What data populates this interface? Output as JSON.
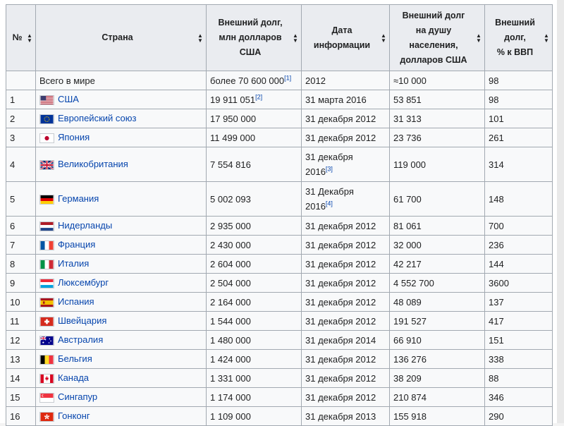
{
  "table": {
    "headers": [
      {
        "label": "№"
      },
      {
        "label": "Страна"
      },
      {
        "label": "Внешний долг,\nмлн долларов\nСША"
      },
      {
        "label": "Дата\nинформации"
      },
      {
        "label": "Внешний долг\nна душу\nнаселения,\nдолларов США"
      },
      {
        "label": "Внешний\nдолг,\n% к ВВП"
      }
    ],
    "world_row": {
      "country": "Всего в мире",
      "debt": "более 70 600 000",
      "debt_ref": "[1]",
      "date": "2012",
      "per_capita": "≈10 000",
      "pct_gdp": "98"
    },
    "rows": [
      {
        "num": "1",
        "country": "США",
        "flag": "usa-flag",
        "debt": "19 911 051",
        "debt_ref": "[2]",
        "date": "31 марта 2016",
        "date_ref": "",
        "per_capita": "53 851",
        "pct_gdp": "98"
      },
      {
        "num": "2",
        "country": "Европейский союз",
        "flag": "eu-flag",
        "debt": "17 950 000",
        "debt_ref": "",
        "date": "31 декабря 2012",
        "date_ref": "",
        "per_capita": "31 313",
        "pct_gdp": "101"
      },
      {
        "num": "3",
        "country": "Япония",
        "flag": "japan-flag",
        "debt": "11 499 000",
        "debt_ref": "",
        "date": "31 декабря 2012",
        "date_ref": "",
        "per_capita": "23 736",
        "pct_gdp": "261"
      },
      {
        "num": "4",
        "country": "Великобритания",
        "flag": "uk-flag",
        "debt": "7 554 816",
        "debt_ref": "",
        "date": "31 декабря 2016",
        "date_ref": "[3]",
        "per_capita": "119 000",
        "pct_gdp": "314"
      },
      {
        "num": "5",
        "country": "Германия",
        "flag": "germany-flag",
        "debt": "5 002 093",
        "debt_ref": "",
        "date": "31 Декабря 2016",
        "date_ref": "[4]",
        "per_capita": "61 700",
        "pct_gdp": "148"
      },
      {
        "num": "6",
        "country": "Нидерланды",
        "flag": "netherlands-flag",
        "debt": "2 935 000",
        "debt_ref": "",
        "date": "31 декабря 2012",
        "date_ref": "",
        "per_capita": "81 061",
        "pct_gdp": "700"
      },
      {
        "num": "7",
        "country": "Франция",
        "flag": "france-flag",
        "debt": "2 430 000",
        "debt_ref": "",
        "date": "31 декабря 2012",
        "date_ref": "",
        "per_capita": "32 000",
        "pct_gdp": "236"
      },
      {
        "num": "8",
        "country": "Италия",
        "flag": "italy-flag",
        "debt": "2 604 000",
        "debt_ref": "",
        "date": "31 декабря 2012",
        "date_ref": "",
        "per_capita": "42 217",
        "pct_gdp": "144"
      },
      {
        "num": "9",
        "country": "Люксембург",
        "flag": "luxembourg-flag",
        "debt": "2 504 000",
        "debt_ref": "",
        "date": "31 декабря 2012",
        "date_ref": "",
        "per_capita": "4 552 700",
        "pct_gdp": "3600"
      },
      {
        "num": "10",
        "country": "Испания",
        "flag": "spain-flag",
        "debt": "2 164 000",
        "debt_ref": "",
        "date": "31 декабря 2012",
        "date_ref": "",
        "per_capita": "48 089",
        "pct_gdp": "137"
      },
      {
        "num": "11",
        "country": "Швейцария",
        "flag": "switzerland-flag",
        "debt": "1 544 000",
        "debt_ref": "",
        "date": "31 декабря 2012",
        "date_ref": "",
        "per_capita": "191 527",
        "pct_gdp": "417"
      },
      {
        "num": "12",
        "country": "Австралия",
        "flag": "australia-flag",
        "debt": "1 480 000",
        "debt_ref": "",
        "date": "31 декабря 2014",
        "date_ref": "",
        "per_capita": "66 910",
        "pct_gdp": "151"
      },
      {
        "num": "13",
        "country": "Бельгия",
        "flag": "belgium-flag",
        "debt": "1 424 000",
        "debt_ref": "",
        "date": "31 декабря 2012",
        "date_ref": "",
        "per_capita": "136 276",
        "pct_gdp": "338"
      },
      {
        "num": "14",
        "country": "Канада",
        "flag": "canada-flag",
        "debt": "1 331 000",
        "debt_ref": "",
        "date": "31 декабря 2012",
        "date_ref": "",
        "per_capita": "38 209",
        "pct_gdp": "88"
      },
      {
        "num": "15",
        "country": "Сингапур",
        "flag": "singapore-flag",
        "debt": "1 174 000",
        "debt_ref": "",
        "date": "31 декабря 2012",
        "date_ref": "",
        "per_capita": "210 874",
        "pct_gdp": "346"
      },
      {
        "num": "16",
        "country": "Гонконг",
        "flag": "hongkong-flag",
        "debt": "1 109 000",
        "debt_ref": "",
        "date": "31 декабря 2013",
        "date_ref": "",
        "per_capita": "155 918",
        "pct_gdp": "290"
      }
    ]
  },
  "colors": {
    "link": "#0645ad",
    "header_bg": "#eaecf0",
    "cell_bg": "#f8f9fa",
    "border": "#a2a9b1"
  }
}
